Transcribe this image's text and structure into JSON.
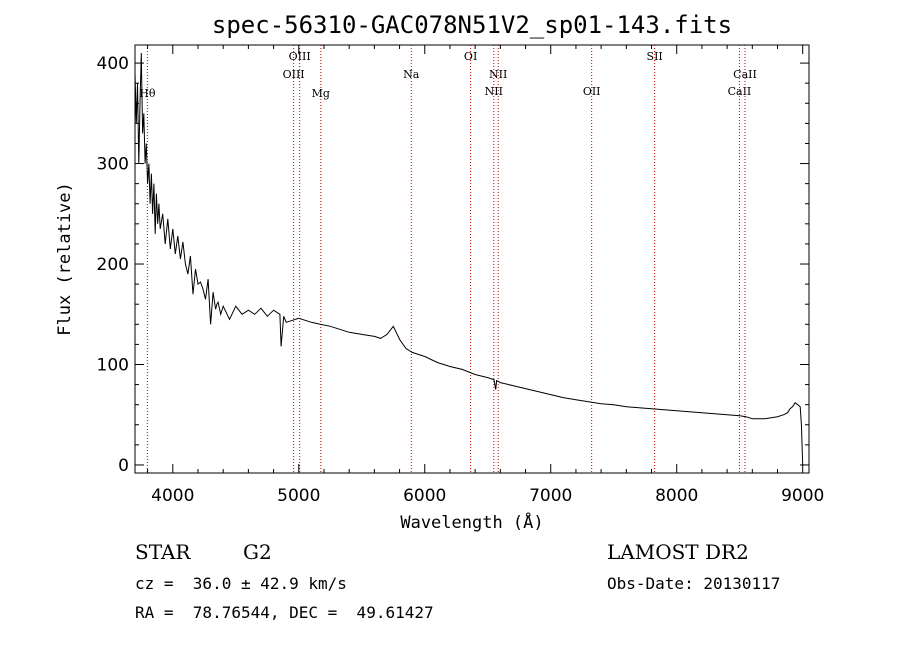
{
  "chart_data": {
    "type": "line",
    "title": "spec-56310-GAC078N51V2_sp01-143.fits",
    "xlabel": "Wavelength (Å)",
    "ylabel": "Flux (relative)",
    "xlim": [
      3700,
      9050
    ],
    "ylim": [
      -8,
      418
    ],
    "xticks": [
      4000,
      5000,
      6000,
      7000,
      8000,
      9000
    ],
    "yticks": [
      0,
      100,
      200,
      300,
      400
    ],
    "grid": false,
    "series": [
      {
        "x": [
          3700,
          3710,
          3720,
          3730,
          3740,
          3750,
          3760,
          3770,
          3780,
          3790,
          3800,
          3810,
          3820,
          3830,
          3840,
          3850,
          3860,
          3870,
          3880,
          3890,
          3900,
          3920,
          3940,
          3960,
          3980,
          4000,
          4020,
          4040,
          4060,
          4080,
          4100,
          4120,
          4140,
          4160,
          4180,
          4200,
          4220,
          4240,
          4260,
          4280,
          4300,
          4320,
          4340,
          4350,
          4360,
          4380,
          4400,
          4450,
          4500,
          4550,
          4600,
          4650,
          4700,
          4750,
          4800,
          4850,
          4860,
          4880,
          4900,
          4950,
          5000,
          5100,
          5170,
          5250,
          5300,
          5400,
          5500,
          5600,
          5650,
          5700,
          5750,
          5800,
          5850,
          5900,
          6000,
          6100,
          6200,
          6300,
          6400,
          6500,
          6550,
          6563,
          6570,
          6600,
          6700,
          6800,
          6900,
          7000,
          7100,
          7200,
          7300,
          7400,
          7500,
          7600,
          7700,
          7800,
          7900,
          8000,
          8100,
          8200,
          8300,
          8400,
          8500,
          8550,
          8600,
          8700,
          8800,
          8850,
          8880,
          8900,
          8920,
          8940,
          8960,
          8980,
          8990,
          9000
        ],
        "y": [
          390,
          340,
          380,
          300,
          360,
          410,
          330,
          350,
          300,
          320,
          280,
          300,
          260,
          290,
          250,
          280,
          230,
          270,
          240,
          260,
          235,
          250,
          220,
          245,
          215,
          235,
          210,
          228,
          205,
          222,
          200,
          190,
          208,
          170,
          195,
          180,
          182,
          175,
          165,
          185,
          140,
          172,
          155,
          160,
          162,
          150,
          158,
          145,
          158,
          150,
          154,
          150,
          156,
          148,
          154,
          150,
          118,
          148,
          142,
          144,
          146,
          142,
          140,
          138,
          136,
          132,
          130,
          128,
          126,
          130,
          138,
          125,
          116,
          112,
          108,
          102,
          98,
          95,
          90,
          87,
          85,
          75,
          84,
          82,
          79,
          76,
          73,
          70,
          67,
          65,
          63,
          61,
          60,
          58,
          57,
          56,
          55,
          54,
          53,
          52,
          51,
          50,
          49,
          48,
          46,
          46,
          48,
          50,
          52,
          56,
          58,
          62,
          60,
          58,
          40,
          0
        ]
      }
    ],
    "line_markers": [
      {
        "label": "Hθ",
        "x": 3798,
        "row": 2
      },
      {
        "label": "OIII",
        "x": 4959,
        "row": 1
      },
      {
        "label": "OIII",
        "x": 5007,
        "row": 0
      },
      {
        "label": "Mg",
        "x": 5175,
        "row": 2
      },
      {
        "label": "Na",
        "x": 5893,
        "row": 1
      },
      {
        "label": "OI",
        "x": 6364,
        "row": 0
      },
      {
        "label": "NII",
        "x": 6548,
        "row": 3
      },
      {
        "label": "NII",
        "x": 6583,
        "row": 1
      },
      {
        "label": "OII",
        "x": 7325,
        "row": 3
      },
      {
        "label": "SII",
        "x": 7825,
        "row": 0
      },
      {
        "label": "CaII",
        "x": 8498,
        "row": 3
      },
      {
        "label": "CaII",
        "x": 8542,
        "row": 1
      }
    ]
  },
  "info": {
    "object_class": "STAR",
    "subclass": "G2",
    "survey": "LAMOST DR2",
    "redshift": "cz =  36.0 ± 42.9 km/s",
    "obs_date": "Obs-Date: 20130117",
    "coords": "RA =  78.76544, DEC =  49.61427"
  },
  "colors": {
    "spectrum": "#000000",
    "line_marker": "#c00000"
  }
}
